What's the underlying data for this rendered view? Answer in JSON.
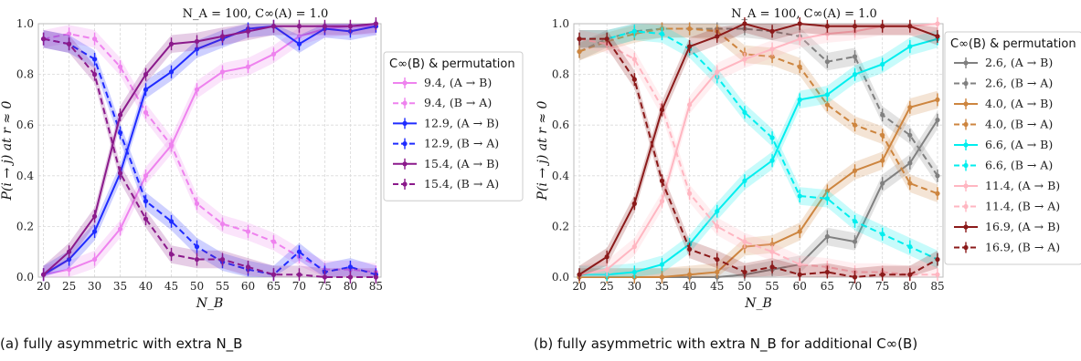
{
  "captions": {
    "a": "(a) fully asymmetric with extra N_B",
    "b": "(b) fully asymmetric with extra N_B for additional C∞(B)"
  },
  "chart_data": [
    {
      "type": "line",
      "title": "N_A = 100, C∞(A) = 1.0",
      "xlabel": "N_B",
      "ylabel": "P(i → j) at r ≈ 0",
      "xlim": [
        19,
        86
      ],
      "ylim": [
        0,
        1.0
      ],
      "xticks": [
        20,
        25,
        30,
        35,
        40,
        45,
        50,
        55,
        60,
        65,
        70,
        75,
        80,
        85
      ],
      "yticks": [
        0.0,
        0.2,
        0.4,
        0.6,
        0.8,
        1.0
      ],
      "grid": true,
      "legend_title": "C∞(B) & permutation",
      "legend_position": "right",
      "x": [
        20,
        25,
        30,
        35,
        40,
        45,
        50,
        55,
        60,
        65,
        70,
        75,
        80,
        85
      ],
      "series": [
        {
          "name": "9.4, (A → B)",
          "color": "#ee82ee",
          "dash": false,
          "values": [
            0.01,
            0.03,
            0.07,
            0.19,
            0.4,
            0.52,
            0.74,
            0.81,
            0.83,
            0.88,
            0.95,
            0.98,
            0.99,
            0.99
          ]
        },
        {
          "name": "9.4, (B → A)",
          "color": "#ee82ee",
          "dash": true,
          "values": [
            0.94,
            0.96,
            0.94,
            0.83,
            0.65,
            0.52,
            0.29,
            0.21,
            0.18,
            0.14,
            0.08,
            0.03,
            0.03,
            0.02
          ]
        },
        {
          "name": "12.9, (A → B)",
          "color": "#1f2bff",
          "dash": false,
          "values": [
            0.01,
            0.07,
            0.18,
            0.41,
            0.74,
            0.81,
            0.9,
            0.94,
            0.98,
            0.99,
            0.92,
            0.98,
            0.97,
            0.99
          ]
        },
        {
          "name": "12.9, (B → A)",
          "color": "#1f2bff",
          "dash": true,
          "values": [
            0.94,
            0.92,
            0.86,
            0.57,
            0.3,
            0.22,
            0.12,
            0.06,
            0.03,
            0.01,
            0.1,
            0.02,
            0.04,
            0.01
          ]
        },
        {
          "name": "15.4, (A → B)",
          "color": "#8b1a8b",
          "dash": false,
          "values": [
            0.01,
            0.1,
            0.24,
            0.64,
            0.8,
            0.92,
            0.93,
            0.95,
            0.97,
            0.99,
            0.99,
            0.99,
            0.99,
            1.0
          ]
        },
        {
          "name": "15.4, (B → A)",
          "color": "#8b1a8b",
          "dash": true,
          "values": [
            0.94,
            0.92,
            0.8,
            0.41,
            0.23,
            0.09,
            0.07,
            0.07,
            0.04,
            0.01,
            0.01,
            0.0,
            0.0,
            0.0
          ]
        }
      ]
    },
    {
      "type": "line",
      "title": "N_A = 100, C∞(A) = 1.0",
      "xlabel": "N_B",
      "ylabel": "P(i → j) at r ≈ 0",
      "xlim": [
        19,
        86
      ],
      "ylim": [
        0,
        1.0
      ],
      "xticks": [
        20,
        25,
        30,
        35,
        40,
        45,
        50,
        55,
        60,
        65,
        70,
        75,
        80,
        85
      ],
      "yticks": [
        0.0,
        0.2,
        0.4,
        0.6,
        0.8,
        1.0
      ],
      "grid": true,
      "legend_title": "C∞(B) & permutation",
      "legend_position": "right",
      "x": [
        20,
        25,
        30,
        35,
        40,
        45,
        50,
        55,
        60,
        65,
        70,
        75,
        80,
        85
      ],
      "series": [
        {
          "name": "2.6, (A → B)",
          "color": "#808080",
          "dash": false,
          "values": [
            0.0,
            0.0,
            0.0,
            0.0,
            0.0,
            0.0,
            0.01,
            0.03,
            0.05,
            0.16,
            0.14,
            0.37,
            0.45,
            0.62
          ]
        },
        {
          "name": "2.6, (B → A)",
          "color": "#808080",
          "dash": true,
          "values": [
            0.89,
            0.94,
            0.97,
            0.98,
            0.98,
            0.98,
            0.98,
            0.97,
            0.95,
            0.85,
            0.87,
            0.64,
            0.56,
            0.4
          ]
        },
        {
          "name": "4.0, (A → B)",
          "color": "#cd853f",
          "dash": false,
          "values": [
            0.0,
            0.0,
            0.0,
            0.0,
            0.01,
            0.02,
            0.12,
            0.13,
            0.18,
            0.34,
            0.42,
            0.46,
            0.67,
            0.7
          ]
        },
        {
          "name": "4.0, (B → A)",
          "color": "#cd853f",
          "dash": true,
          "values": [
            0.89,
            0.93,
            0.96,
            0.98,
            0.98,
            0.97,
            0.88,
            0.87,
            0.83,
            0.68,
            0.6,
            0.56,
            0.37,
            0.33
          ]
        },
        {
          "name": "6.6, (A → B)",
          "color": "#00eeee",
          "dash": false,
          "values": [
            0.01,
            0.01,
            0.02,
            0.05,
            0.13,
            0.26,
            0.38,
            0.46,
            0.7,
            0.72,
            0.8,
            0.84,
            0.91,
            0.94
          ]
        },
        {
          "name": "6.6, (B → A)",
          "color": "#00eeee",
          "dash": true,
          "values": [
            0.94,
            0.94,
            0.97,
            0.96,
            0.9,
            0.79,
            0.65,
            0.55,
            0.32,
            0.31,
            0.22,
            0.17,
            0.12,
            0.07
          ]
        },
        {
          "name": "11.4, (A → B)",
          "color": "#ffb6c1",
          "dash": false,
          "values": [
            0.01,
            0.03,
            0.12,
            0.3,
            0.68,
            0.81,
            0.86,
            0.9,
            0.94,
            0.96,
            0.97,
            0.99,
            0.99,
            1.0
          ]
        },
        {
          "name": "11.4, (B → A)",
          "color": "#ffb6c1",
          "dash": true,
          "values": [
            0.94,
            0.92,
            0.86,
            0.67,
            0.33,
            0.2,
            0.14,
            0.1,
            0.05,
            0.04,
            0.02,
            0.02,
            0.01,
            0.01
          ]
        },
        {
          "name": "16.9, (A → B)",
          "color": "#8b1a1a",
          "dash": false,
          "values": [
            0.01,
            0.08,
            0.29,
            0.66,
            0.91,
            0.95,
            1.0,
            0.97,
            1.0,
            0.99,
            0.99,
            0.99,
            0.99,
            0.95
          ]
        },
        {
          "name": "16.9, (B → A)",
          "color": "#8b1a1a",
          "dash": true,
          "values": [
            0.94,
            0.94,
            0.78,
            0.38,
            0.11,
            0.07,
            0.02,
            0.04,
            0.01,
            0.02,
            0.0,
            0.01,
            0.01,
            0.07
          ]
        }
      ]
    }
  ]
}
